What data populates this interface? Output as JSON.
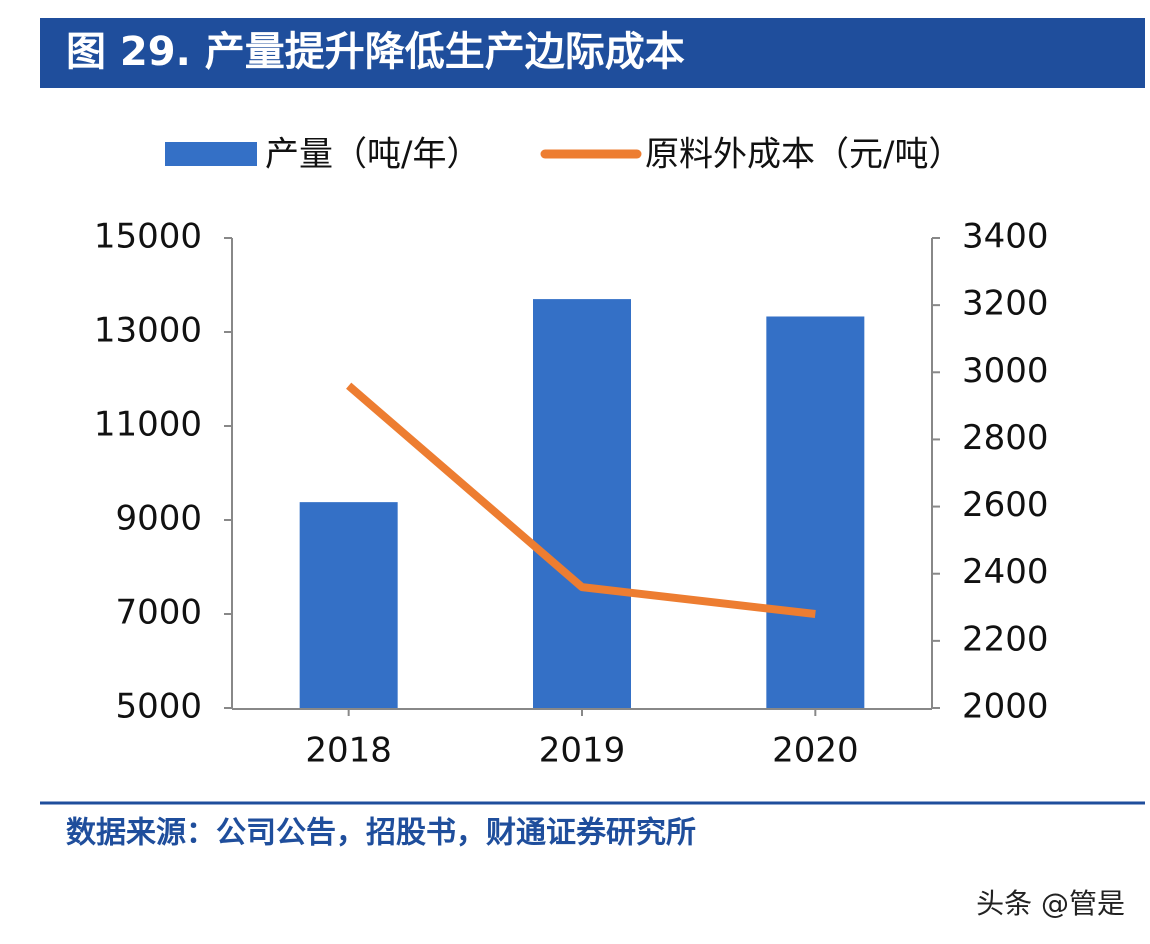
{
  "chart_data": {
    "type": "bar-line",
    "title": "图 29. 产量提升降低生产边际成本",
    "categories": [
      "2018",
      "2019",
      "2020"
    ],
    "series": [
      {
        "name": "产量（吨/年）",
        "type": "bar",
        "color": "#3470c6",
        "values": [
          9380,
          13700,
          13330
        ]
      },
      {
        "name": "原料外成本（元/吨）",
        "type": "line",
        "axis": "y2",
        "color": "#ed7d31",
        "values": [
          2960,
          2360,
          2280
        ]
      }
    ],
    "ylim": [
      5000,
      15000
    ],
    "yticks": [
      5000,
      7000,
      9000,
      11000,
      13000,
      15000
    ],
    "y2lim": [
      2000,
      3400
    ],
    "y2ticks": [
      2000,
      2200,
      2400,
      2600,
      2800,
      3000,
      3200,
      3400
    ],
    "source": "数据来源：公司公告，招股书，财通证券研究所",
    "watermark": "头条 @管是"
  }
}
